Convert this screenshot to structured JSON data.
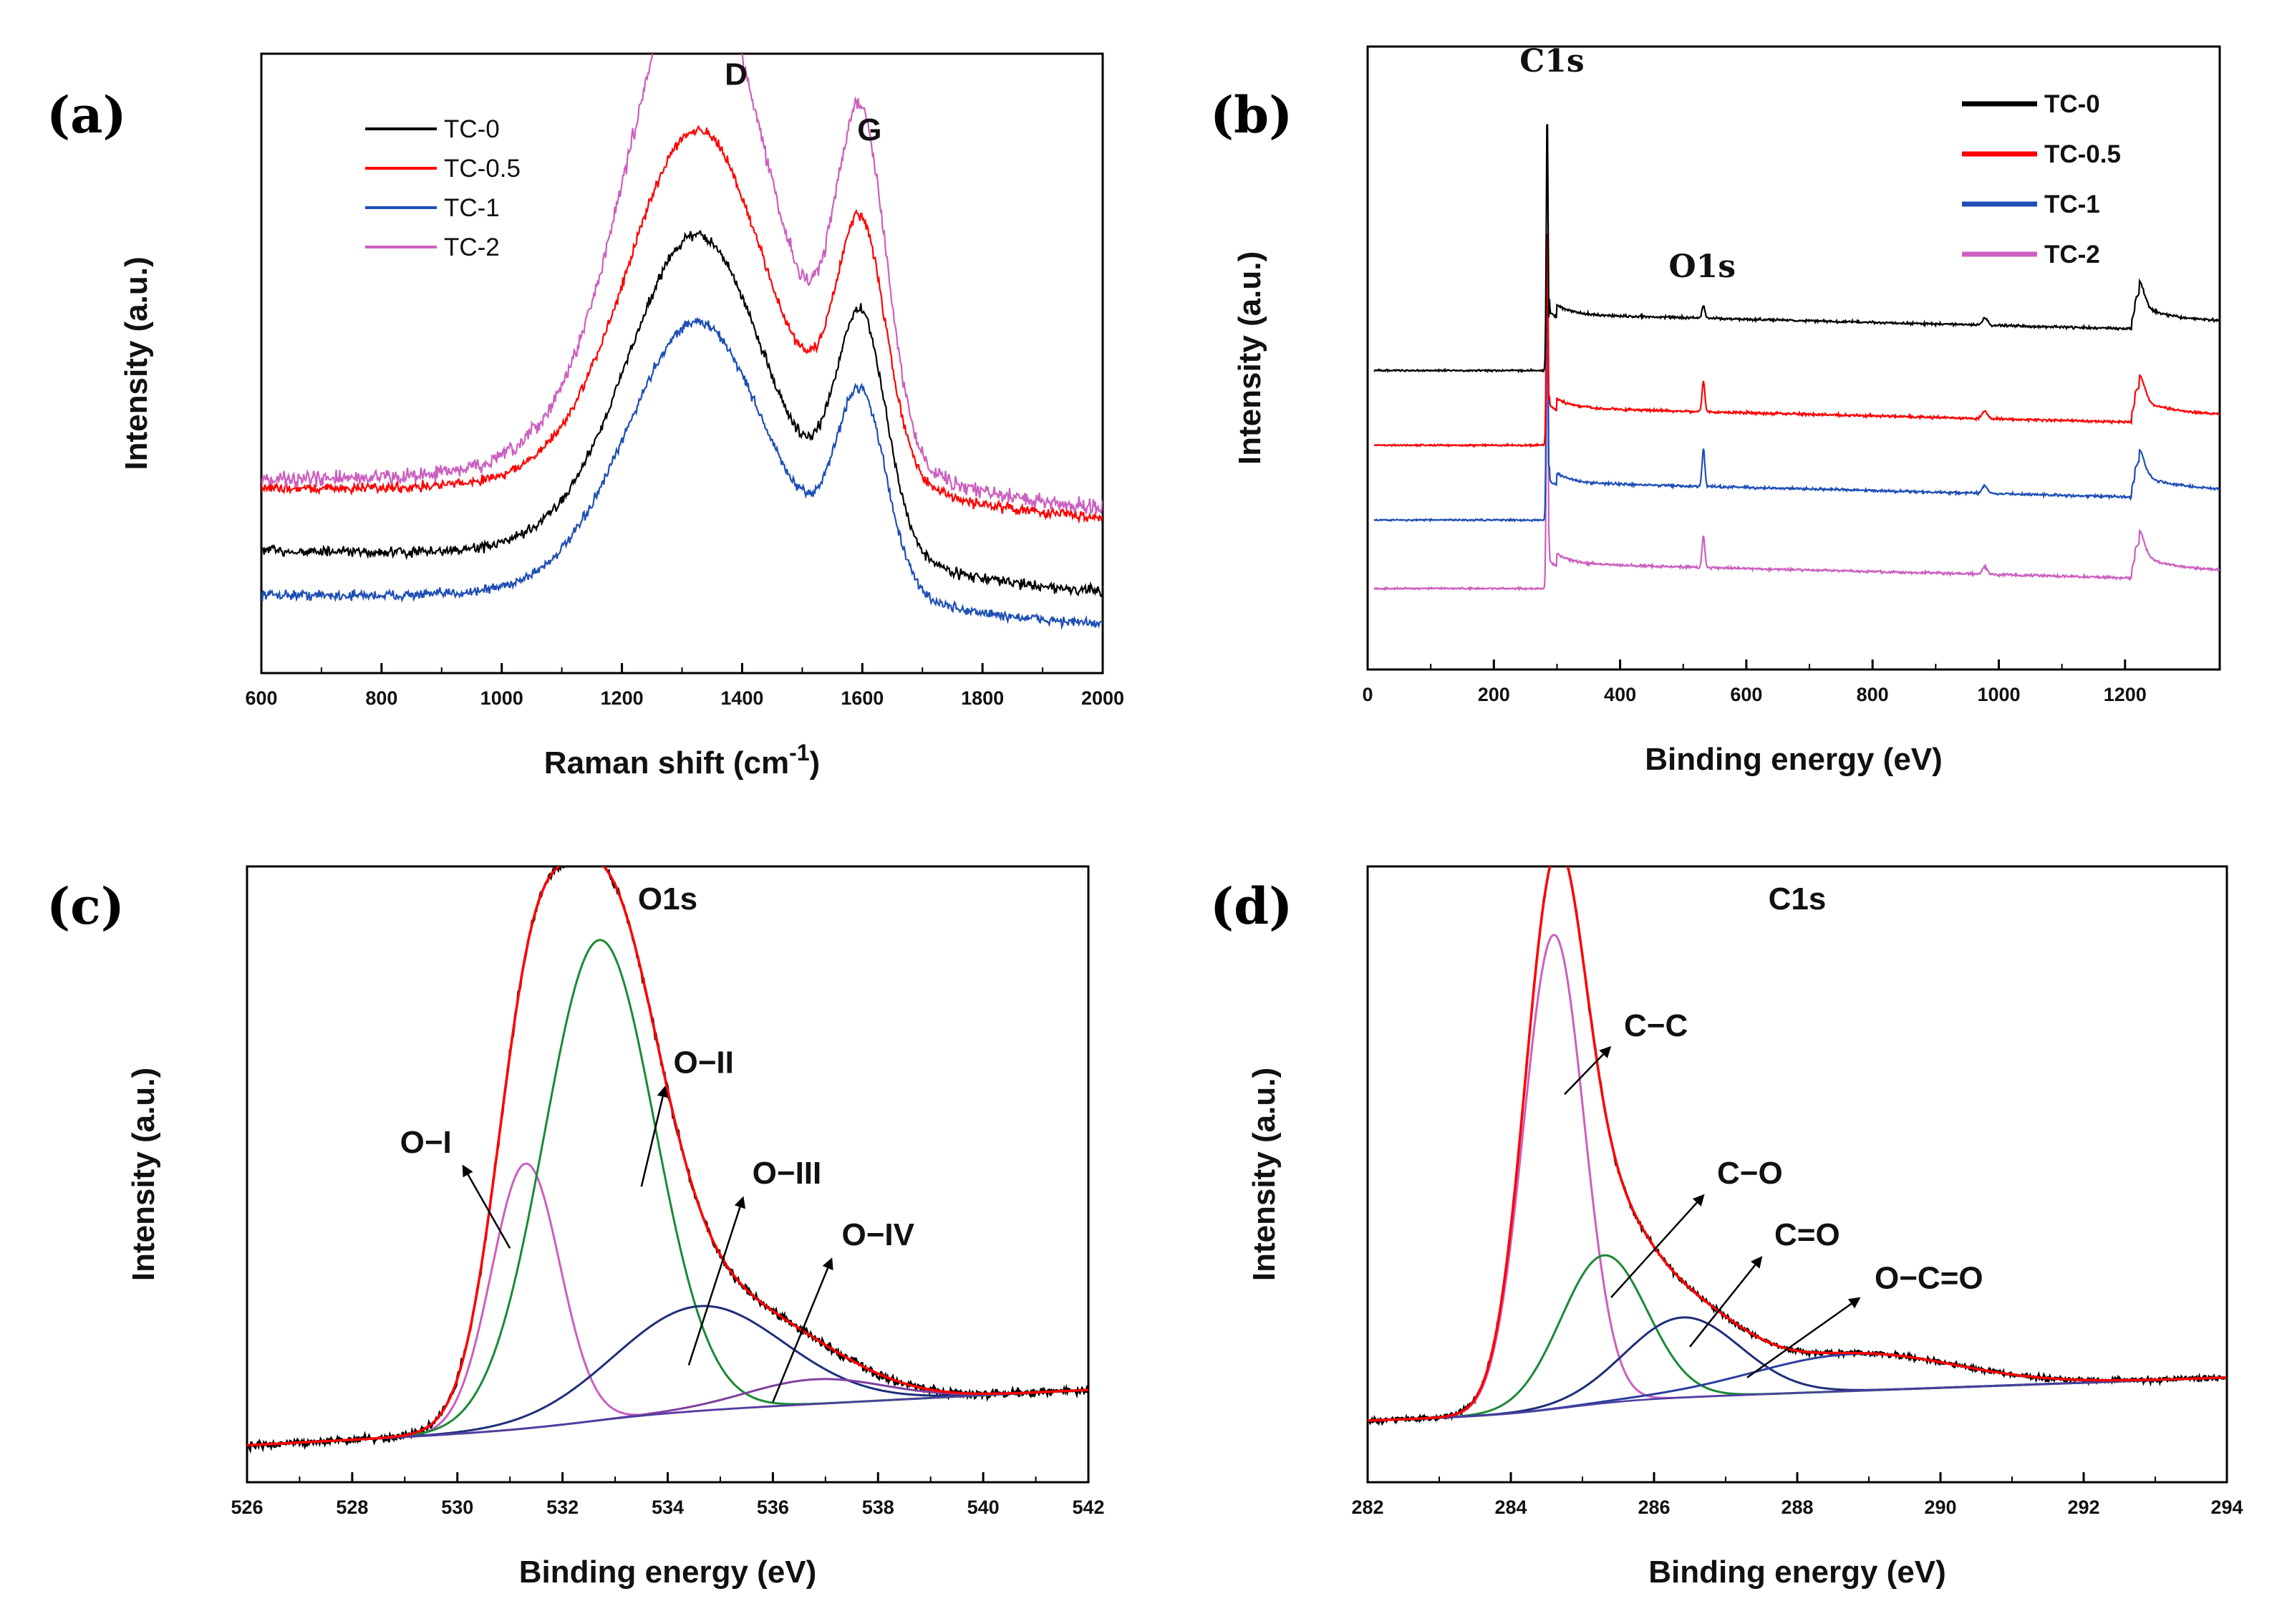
{
  "chart_data": [
    {
      "id": "a",
      "type": "line",
      "panel_label": "(a)",
      "title": "",
      "xlabel": "Raman shift (cm",
      "xlabel_superscript": "-1",
      "xlabel_close": ")",
      "ylabel": "Intensity (a.u.)",
      "xlim": [
        600,
        2000
      ],
      "ylim": [
        0,
        1
      ],
      "xticks": [
        600,
        800,
        1000,
        1200,
        1400,
        1600,
        1800,
        2000
      ],
      "legend_position": "top-left",
      "series": [
        {
          "name": "TC-0",
          "color": "#000000",
          "baseline_start": 0.19,
          "baseline_end": 0.12,
          "D": 0.55,
          "G": 0.38,
          "noise": 0.012
        },
        {
          "name": "TC-0.5",
          "color": "#ff0000",
          "baseline_start": 0.29,
          "baseline_end": 0.24,
          "D": 0.61,
          "G": 0.41,
          "noise": 0.012
        },
        {
          "name": "TC-1",
          "color": "#1f4fb5",
          "baseline_start": 0.12,
          "baseline_end": 0.07,
          "D": 0.47,
          "G": 0.32,
          "noise": 0.012
        },
        {
          "name": "TC-2",
          "color": "#cc5fc0",
          "baseline_start": 0.3,
          "baseline_end": 0.25,
          "D": 0.87,
          "G": 0.55,
          "noise": 0.018
        }
      ],
      "annotations": [
        {
          "text": "D",
          "x": 1390,
          "y": 0.95
        },
        {
          "text": "G",
          "x": 1612,
          "y": 0.86
        }
      ]
    },
    {
      "id": "b",
      "type": "line",
      "panel_label": "(b)",
      "title": "",
      "xlabel": "Binding energy (eV)",
      "ylabel": "Intensity (a.u.)",
      "xlim": [
        0,
        1350
      ],
      "ylim": [
        0,
        1
      ],
      "xticks": [
        0,
        200,
        400,
        600,
        800,
        1000,
        1200
      ],
      "legend_position": "top-right",
      "series": [
        {
          "name": "TC-0",
          "color": "#000000",
          "pre": 0.48,
          "post": 0.57,
          "end": 0.55,
          "O1s": 0.02,
          "C1s_peak": 0.9
        },
        {
          "name": "TC-0.5",
          "color": "#ff0000",
          "pre": 0.36,
          "post": 0.42,
          "end": 0.41,
          "O1s": 0.05,
          "C1s_peak": 0.72
        },
        {
          "name": "TC-1",
          "color": "#1f4fb5",
          "pre": 0.24,
          "post": 0.3,
          "end": 0.29,
          "O1s": 0.06,
          "C1s_peak": 0.67
        },
        {
          "name": "TC-2",
          "color": "#cc5fc0",
          "pre": 0.13,
          "post": 0.17,
          "end": 0.17,
          "O1s": 0.05,
          "C1s_peak": 0.6
        }
      ],
      "annotations": [
        {
          "text": "C1s",
          "x": 292,
          "y": 0.96
        },
        {
          "text": "O1s",
          "x": 530,
          "y": 0.63
        }
      ]
    },
    {
      "id": "c",
      "type": "line",
      "panel_label": "(c)",
      "title": "O1s",
      "xlabel": "Binding energy (eV)",
      "ylabel": "Intensity (a.u.)",
      "xlim": [
        526,
        542
      ],
      "ylim": [
        0,
        1
      ],
      "xticks": [
        526,
        528,
        530,
        532,
        534,
        536,
        538,
        540,
        542
      ],
      "background": {
        "y_start": 0.06,
        "y_end": 0.13
      },
      "components": [
        {
          "name": "O-I",
          "center": 531.3,
          "height": 0.43,
          "sigma": 0.65,
          "color": "#cc5fc0"
        },
        {
          "name": "O-II",
          "center": 532.7,
          "height": 0.78,
          "sigma": 1.05,
          "color": "#1a8a35"
        },
        {
          "name": "O-III",
          "center": 534.6,
          "height": 0.17,
          "sigma": 1.6,
          "color": "#1e2f7a"
        },
        {
          "name": "O-IV",
          "center": 536.8,
          "height": 0.04,
          "sigma": 1.3,
          "color": "#8040a0"
        }
      ],
      "fit_color": "#ff0000",
      "raw_color": "#000000",
      "annotations": [
        {
          "text": "O−I",
          "label_x": 530.0,
          "label_y": 0.53,
          "point_x": 531.0,
          "point_y": 0.38
        },
        {
          "text": "O−II",
          "label_x": 534.0,
          "label_y": 0.66,
          "point_x": 533.5,
          "point_y": 0.48
        },
        {
          "text": "O−III",
          "label_x": 535.5,
          "label_y": 0.48,
          "point_x": 534.4,
          "point_y": 0.19
        },
        {
          "text": "O−IV",
          "label_x": 537.2,
          "label_y": 0.38,
          "point_x": 536.0,
          "point_y": 0.13
        }
      ]
    },
    {
      "id": "d",
      "type": "line",
      "panel_label": "(d)",
      "title": "C1s",
      "xlabel": "Binding energy (eV)",
      "ylabel": "Intensity (a.u.)",
      "xlim": [
        282,
        294
      ],
      "ylim": [
        0,
        1
      ],
      "xticks": [
        282,
        284,
        286,
        288,
        290,
        292,
        294
      ],
      "background": {
        "y_start": 0.1,
        "y_end": 0.15
      },
      "components": [
        {
          "name": "C−C",
          "center": 284.6,
          "height": 0.77,
          "sigma": 0.42,
          "color": "#cc5fc0"
        },
        {
          "name": "C−O",
          "center": 285.3,
          "height": 0.24,
          "sigma": 0.6,
          "color": "#1a8a35"
        },
        {
          "name": "C=O",
          "center": 286.4,
          "height": 0.13,
          "sigma": 0.8,
          "color": "#1e2f7a"
        },
        {
          "name": "O−C=O",
          "center": 288.8,
          "height": 0.06,
          "sigma": 1.4,
          "color": "#2c3fa0"
        }
      ],
      "fit_color": "#ff0000",
      "raw_color": "#000000",
      "annotations": [
        {
          "text": "C−C",
          "label_x": 285.5,
          "label_y": 0.72,
          "point_x": 284.75,
          "point_y": 0.63
        },
        {
          "text": "C−O",
          "label_x": 286.8,
          "label_y": 0.48,
          "point_x": 285.4,
          "point_y": 0.3
        },
        {
          "text": "C=O",
          "label_x": 287.6,
          "label_y": 0.38,
          "point_x": 286.5,
          "point_y": 0.22
        },
        {
          "text": "O−C=O",
          "label_x": 289.0,
          "label_y": 0.31,
          "point_x": 287.3,
          "point_y": 0.17
        }
      ]
    }
  ]
}
